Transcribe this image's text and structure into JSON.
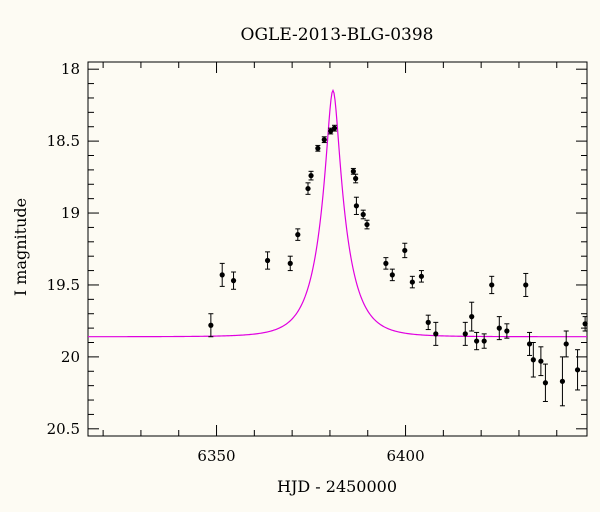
{
  "chart_data": {
    "type": "scatter",
    "title": "OGLE-2013-BLG-0398",
    "xlabel": "HJD - 2450000",
    "ylabel": "I magnitude",
    "xlim": [
      6316,
      6448
    ],
    "ylim": [
      17.95,
      20.55
    ],
    "y_inverted": true,
    "grid": false,
    "x_major_ticks": [
      6350,
      6400
    ],
    "x_minor_step": 10,
    "y_major_ticks": [
      18,
      18.5,
      19,
      19.5,
      20,
      20.5
    ],
    "y_minor_step": 0.1,
    "x_tick_labels": [
      "6350",
      "6400"
    ],
    "y_tick_labels": [
      "18",
      "18.5",
      "19",
      "19.5",
      "20",
      "20.5"
    ],
    "model_curve": {
      "color": "#e000e0",
      "t0": 6380.8,
      "tE": 7.0,
      "u0": 0.21,
      "baseline_mag": 19.86
    },
    "series": [
      {
        "points": [
          {
            "x": 6348.5,
            "y": 19.78,
            "err": 0.08
          },
          {
            "x": 6351.5,
            "y": 19.43,
            "err": 0.08
          },
          {
            "x": 6354.5,
            "y": 19.47,
            "err": 0.06
          },
          {
            "x": 6363.5,
            "y": 19.33,
            "err": 0.06
          },
          {
            "x": 6369.5,
            "y": 19.35,
            "err": 0.05
          },
          {
            "x": 6371.5,
            "y": 19.15,
            "err": 0.04
          },
          {
            "x": 6374.2,
            "y": 18.83,
            "err": 0.04
          },
          {
            "x": 6375.0,
            "y": 18.74,
            "err": 0.03
          },
          {
            "x": 6376.8,
            "y": 18.55,
            "err": 0.02
          },
          {
            "x": 6378.5,
            "y": 18.49,
            "err": 0.02
          },
          {
            "x": 6380.2,
            "y": 18.43,
            "err": 0.02
          },
          {
            "x": 6381.2,
            "y": 18.41,
            "err": 0.02
          },
          {
            "x": 6386.2,
            "y": 18.71,
            "err": 0.02
          },
          {
            "x": 6386.8,
            "y": 18.76,
            "err": 0.03
          },
          {
            "x": 6387.0,
            "y": 18.95,
            "err": 0.06
          },
          {
            "x": 6388.8,
            "y": 19.01,
            "err": 0.03
          },
          {
            "x": 6389.8,
            "y": 19.08,
            "err": 0.03
          },
          {
            "x": 6394.8,
            "y": 19.35,
            "err": 0.04
          },
          {
            "x": 6396.5,
            "y": 19.43,
            "err": 0.04
          },
          {
            "x": 6399.8,
            "y": 19.26,
            "err": 0.05
          },
          {
            "x": 6401.8,
            "y": 19.48,
            "err": 0.04
          },
          {
            "x": 6404.2,
            "y": 19.44,
            "err": 0.04
          },
          {
            "x": 6406.0,
            "y": 19.76,
            "err": 0.05
          },
          {
            "x": 6408.0,
            "y": 19.84,
            "err": 0.08
          },
          {
            "x": 6415.8,
            "y": 19.84,
            "err": 0.08
          },
          {
            "x": 6417.5,
            "y": 19.72,
            "err": 0.1
          },
          {
            "x": 6418.8,
            "y": 19.89,
            "err": 0.06
          },
          {
            "x": 6420.8,
            "y": 19.89,
            "err": 0.05
          },
          {
            "x": 6422.8,
            "y": 19.5,
            "err": 0.06
          },
          {
            "x": 6424.8,
            "y": 19.8,
            "err": 0.08
          },
          {
            "x": 6426.8,
            "y": 19.82,
            "err": 0.05
          },
          {
            "x": 6431.8,
            "y": 19.5,
            "err": 0.08
          },
          {
            "x": 6432.8,
            "y": 19.91,
            "err": 0.08
          },
          {
            "x": 6433.8,
            "y": 20.02,
            "err": 0.12
          },
          {
            "x": 6435.8,
            "y": 20.03,
            "err": 0.1
          },
          {
            "x": 6437.0,
            "y": 20.18,
            "err": 0.13
          },
          {
            "x": 6441.5,
            "y": 20.17,
            "err": 0.17
          },
          {
            "x": 6442.5,
            "y": 19.91,
            "err": 0.09
          },
          {
            "x": 6445.5,
            "y": 20.09,
            "err": 0.14
          },
          {
            "x": 6447.5,
            "y": 19.77,
            "err": 0.05
          }
        ]
      }
    ]
  }
}
